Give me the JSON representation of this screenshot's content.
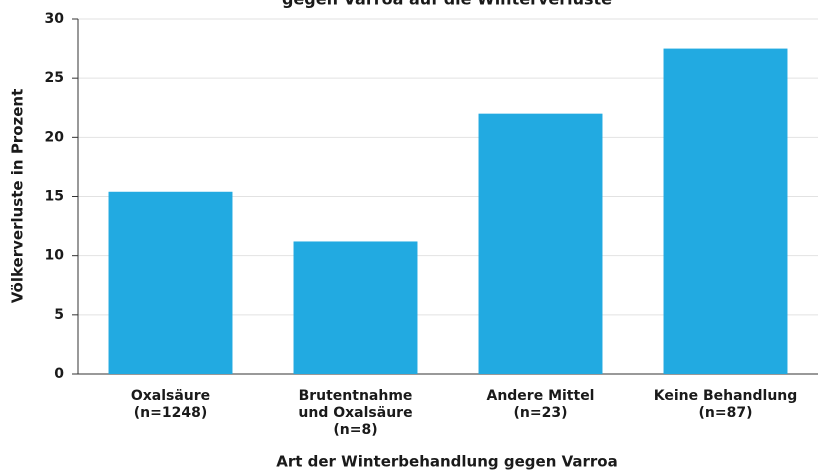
{
  "chart_data": {
    "type": "bar",
    "title": "gegen Varroa auf die Winterverluste",
    "x_label": "Art der Winterbehandlung gegen Varroa",
    "y_label": "Völkerverluste in Prozent",
    "categories": [
      "Oxalsäure\n(n=1248)",
      "Brutentnahme\nund Oxalsäure\n(n=8)",
      "Andere Mittel\n(n=23)",
      "Keine Behandlung\n(n=87)"
    ],
    "values": [
      15.4,
      11.2,
      22.0,
      27.5
    ],
    "color": "#22aae1",
    "ylim": [
      0,
      30
    ],
    "yticks": [
      0,
      5,
      10,
      15,
      20,
      25,
      30
    ],
    "grid": true
  }
}
